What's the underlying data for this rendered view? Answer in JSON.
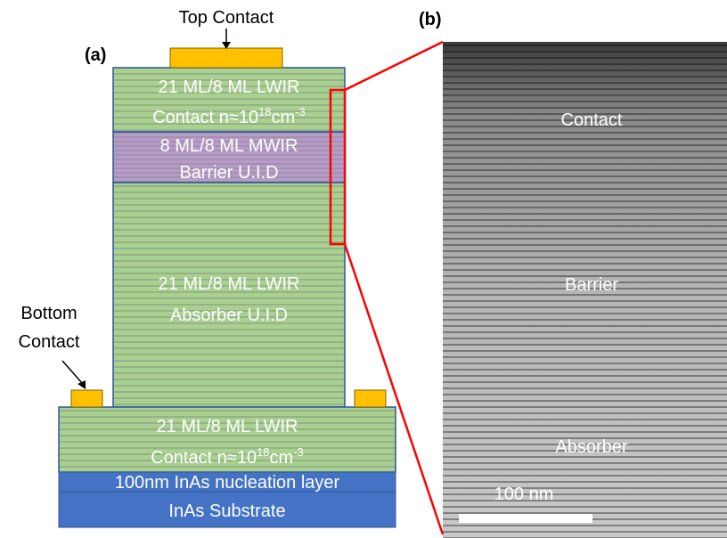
{
  "labels": {
    "a": "(a)",
    "b": "(b)",
    "top_contact": "Top Contact",
    "bottom_contact": [
      "Bottom",
      "Contact"
    ]
  },
  "layers": {
    "top_contact_layer": {
      "line1": "21 ML/8 ML LWIR",
      "line2": {
        "base": "Contact n≈10",
        "exp1": "18",
        "unit": "cm",
        "exp2": "-3"
      }
    },
    "barrier": {
      "line1": "8 ML/8 ML MWIR",
      "line2": "Barrier U.I.D"
    },
    "absorber": {
      "line1": "21 ML/8 ML LWIR",
      "line2": "Absorber U.I.D"
    },
    "bottom_contact_layer": {
      "line1": "21 ML/8 ML LWIR",
      "line2": {
        "base": "Contact n≈10",
        "exp1": "18",
        "unit": "cm",
        "exp2": "-3"
      }
    },
    "nucleation": "100nm InAs nucleation layer",
    "substrate": "InAs Substrate"
  },
  "tem": {
    "contact": "Contact",
    "barrier": "Barrier",
    "absorber": "Absorber",
    "scale": "100 nm"
  }
}
